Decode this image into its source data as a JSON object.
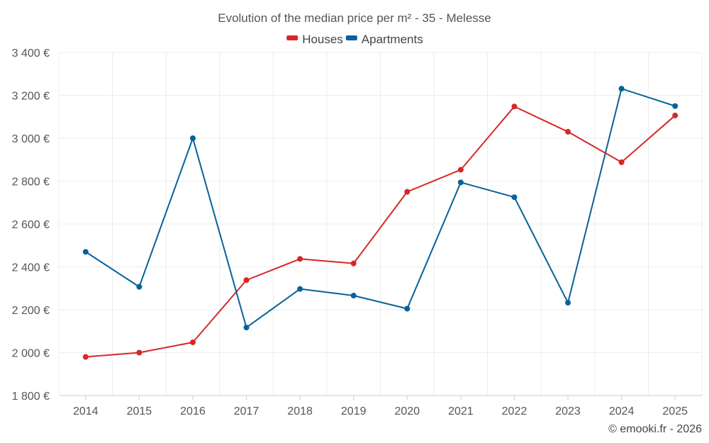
{
  "chart_data": {
    "type": "line",
    "title": "Evolution of the median price per m² - 35 - Melesse",
    "categories": [
      "2014",
      "2015",
      "2016",
      "2017",
      "2018",
      "2019",
      "2020",
      "2021",
      "2022",
      "2023",
      "2024",
      "2025"
    ],
    "series": [
      {
        "name": "Houses",
        "color": "#d62728",
        "values": [
          1980,
          2000,
          2048,
          2338,
          2437,
          2416,
          2750,
          2853,
          3148,
          3030,
          2888,
          3106
        ]
      },
      {
        "name": "Apartments",
        "color": "#08619a",
        "values": [
          2470,
          2307,
          3000,
          2117,
          2297,
          2266,
          2205,
          2794,
          2725,
          2233,
          3231,
          3150
        ]
      }
    ],
    "ylim": [
      1800,
      3400
    ],
    "y_ticks": [
      1800,
      2000,
      2200,
      2400,
      2600,
      2800,
      3000,
      3200,
      3400
    ],
    "y_tick_labels": [
      "1 800 €",
      "2 000 €",
      "2 200 €",
      "2 400 €",
      "2 600 €",
      "2 800 €",
      "3 000 €",
      "3 200 €",
      "3 400 €"
    ],
    "xlabel": "",
    "ylabel": "",
    "grid": true,
    "legend_position": "top-center"
  },
  "credit": "© emooki.fr - 2026"
}
